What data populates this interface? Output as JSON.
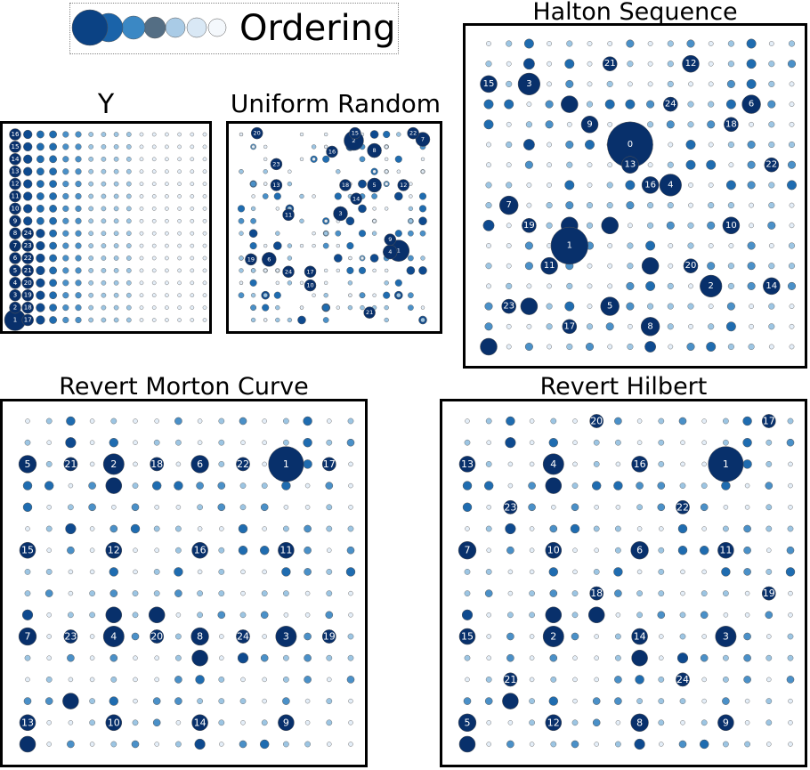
{
  "legend": {
    "title": "Ordering",
    "colors": [
      "#0b4284",
      "#1a63a9",
      "#3b88c4",
      "#546e84",
      "#a9cbe6",
      "#d9e8f5",
      "#f4f8fc"
    ]
  },
  "palette": {
    "rank_colors": [
      "#08306b",
      "#0e4a8f",
      "#1f6cb0",
      "#4a90c8",
      "#9cc5e3",
      "#e4eef8"
    ]
  },
  "panels": {
    "y": {
      "title": "Y",
      "labels": [
        [
          "1",
          0,
          0
        ],
        [
          "2",
          0,
          1
        ],
        [
          "3",
          0,
          2
        ],
        [
          "4",
          0,
          3
        ],
        [
          "5",
          0,
          4
        ],
        [
          "6",
          0,
          5
        ],
        [
          "7",
          0,
          6
        ],
        [
          "8",
          0,
          7
        ],
        [
          "9",
          0,
          8
        ],
        [
          "10",
          0,
          9
        ],
        [
          "11",
          0,
          10
        ],
        [
          "12",
          0,
          11
        ],
        [
          "13",
          0,
          12
        ],
        [
          "14",
          0,
          13
        ],
        [
          "15",
          0,
          14
        ],
        [
          "16",
          0,
          15
        ],
        [
          "17",
          1,
          0
        ],
        [
          "18",
          1,
          1
        ],
        [
          "19",
          1,
          2
        ],
        [
          "20",
          1,
          3
        ],
        [
          "21",
          1,
          4
        ],
        [
          "22",
          1,
          5
        ],
        [
          "23",
          1,
          6
        ],
        [
          "24",
          1,
          7
        ]
      ]
    },
    "uniform": {
      "title": "Uniform Random",
      "labels": [
        [
          "1",
          13.0,
          5.6
        ],
        [
          "2",
          9.3,
          14.5
        ],
        [
          "3",
          8.2,
          8.6
        ],
        [
          "4",
          12.3,
          5.5
        ],
        [
          "5",
          11.0,
          10.9
        ],
        [
          "6",
          2.3,
          4.9
        ],
        [
          "7",
          15.0,
          14.6
        ],
        [
          "8",
          11.0,
          13.7
        ],
        [
          "9",
          12.3,
          6.5
        ],
        [
          "10",
          5.7,
          2.8
        ],
        [
          "11",
          3.9,
          8.5
        ],
        [
          "12",
          13.4,
          10.9
        ],
        [
          "13",
          2.9,
          10.9
        ],
        [
          "14",
          9.5,
          9.8
        ],
        [
          "15",
          9.4,
          15.1
        ],
        [
          "16",
          7.5,
          13.6
        ],
        [
          "17",
          5.7,
          3.9
        ],
        [
          "18",
          8.6,
          10.9
        ],
        [
          "19",
          0.8,
          4.9
        ],
        [
          "20",
          1.3,
          15.1
        ],
        [
          "21",
          10.6,
          0.6
        ],
        [
          "22",
          14.2,
          15.1
        ],
        [
          "23",
          2.9,
          12.6
        ],
        [
          "24",
          3.9,
          3.9
        ]
      ]
    },
    "halton": {
      "title": "Halton Sequence",
      "labels": [
        [
          "0",
          7.0,
          10.0
        ],
        [
          "1",
          4.0,
          5.0
        ],
        [
          "2",
          11.0,
          3.0
        ],
        [
          "3",
          2.0,
          13.0
        ],
        [
          "4",
          9.0,
          8.0
        ],
        [
          "5",
          6.0,
          2.0
        ],
        [
          "6",
          13.0,
          12.0
        ],
        [
          "7",
          1.0,
          7.0
        ],
        [
          "8",
          8.0,
          1.0
        ],
        [
          "9",
          5.0,
          11.0
        ],
        [
          "10",
          12.0,
          6.0
        ],
        [
          "11",
          3.0,
          4.0
        ],
        [
          "12",
          10.0,
          14.0
        ],
        [
          "13",
          7.0,
          9.0
        ],
        [
          "14",
          14.0,
          3.0
        ],
        [
          "15",
          0.0,
          13.0
        ],
        [
          "16",
          8.0,
          8.0
        ],
        [
          "17",
          4.0,
          1.0
        ],
        [
          "18",
          12.0,
          11.0
        ],
        [
          "19",
          2.0,
          6.0
        ],
        [
          "20",
          10.0,
          4.0
        ],
        [
          "21",
          6.0,
          14.0
        ],
        [
          "22",
          14.0,
          9.0
        ],
        [
          "23",
          1.0,
          2.0
        ],
        [
          "24",
          9.0,
          12.0
        ]
      ]
    },
    "morton": {
      "title": "Revert Morton Curve",
      "labels": [
        [
          "1",
          12,
          13
        ],
        [
          "2",
          4,
          13
        ],
        [
          "3",
          12,
          5
        ],
        [
          "4",
          4,
          5
        ],
        [
          "5",
          0,
          13
        ],
        [
          "6",
          8,
          13
        ],
        [
          "7",
          0,
          5
        ],
        [
          "8",
          8,
          5
        ],
        [
          "9",
          12,
          1
        ],
        [
          "10",
          4,
          1
        ],
        [
          "11",
          12,
          9
        ],
        [
          "12",
          4,
          9
        ],
        [
          "13",
          0,
          1
        ],
        [
          "14",
          8,
          1
        ],
        [
          "15",
          0,
          9
        ],
        [
          "16",
          8,
          9
        ],
        [
          "17",
          14,
          13
        ],
        [
          "18",
          6,
          13
        ],
        [
          "19",
          14,
          5
        ],
        [
          "20",
          6,
          5
        ],
        [
          "21",
          2,
          13
        ],
        [
          "22",
          10,
          13
        ],
        [
          "23",
          2,
          5
        ],
        [
          "24",
          10,
          5
        ]
      ]
    },
    "hilbert": {
      "title": "Revert Hilbert",
      "labels": [
        [
          "1",
          12,
          13
        ],
        [
          "2",
          4,
          5
        ],
        [
          "3",
          12,
          5
        ],
        [
          "4",
          4,
          13
        ],
        [
          "5",
          0,
          1
        ],
        [
          "6",
          8,
          9
        ],
        [
          "7",
          0,
          9
        ],
        [
          "8",
          8,
          1
        ],
        [
          "9",
          12,
          1
        ],
        [
          "10",
          4,
          9
        ],
        [
          "11",
          12,
          9
        ],
        [
          "12",
          4,
          1
        ],
        [
          "13",
          0,
          13
        ],
        [
          "14",
          8,
          5
        ],
        [
          "15",
          0,
          5
        ],
        [
          "16",
          8,
          13
        ],
        [
          "17",
          14,
          15
        ],
        [
          "18",
          6,
          7
        ],
        [
          "19",
          14,
          7
        ],
        [
          "20",
          6,
          15
        ],
        [
          "21",
          2,
          3
        ],
        [
          "22",
          10,
          11
        ],
        [
          "23",
          2,
          11
        ],
        [
          "24",
          10,
          3
        ]
      ]
    }
  }
}
